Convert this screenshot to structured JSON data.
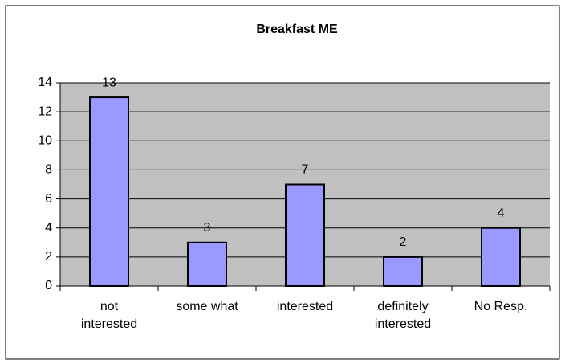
{
  "chart_data": {
    "type": "bar",
    "title": "Breakfast ME",
    "categories": [
      "not interested",
      "some what",
      "interested",
      "definitely interested",
      "No Resp."
    ],
    "values": [
      13,
      3,
      7,
      2,
      4
    ],
    "color": "#9999ff",
    "ylim": [
      0,
      14
    ],
    "yticks": [
      0,
      2,
      4,
      6,
      8,
      10,
      12,
      14
    ],
    "grid": true
  }
}
